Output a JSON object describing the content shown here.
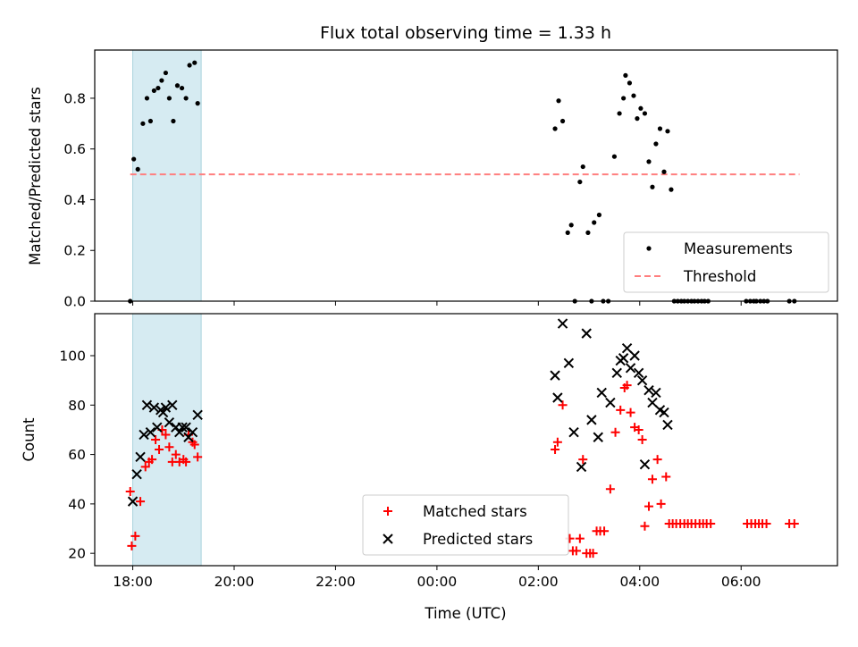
{
  "chart_data": [
    {
      "type": "scatter",
      "title": "Flux total observing time = 1.33 h",
      "xlabel": "",
      "ylabel": "Matched/Predicted stars",
      "xlim": [
        -6.75,
        7.9
      ],
      "ylim": [
        0,
        0.99
      ],
      "xticks": [
        -6,
        -4,
        -2,
        0,
        2,
        4,
        6
      ],
      "yticks": [
        0.0,
        0.2,
        0.4,
        0.6,
        0.8
      ],
      "ytick_labels": [
        "0.0",
        "0.2",
        "0.4",
        "0.6",
        "0.8"
      ],
      "highlight_span": [
        -6.0,
        -4.65
      ],
      "threshold": 0.5,
      "threshold_range": [
        -6.05,
        7.15
      ],
      "legend": {
        "position": "lower-right",
        "entries": [
          "Measurements",
          "Threshold"
        ]
      },
      "series": [
        {
          "name": "Measurements",
          "marker": "dot",
          "color": "#000000",
          "points": [
            [
              -6.05,
              0.0
            ],
            [
              -5.98,
              0.56
            ],
            [
              -5.9,
              0.52
            ],
            [
              -5.8,
              0.7
            ],
            [
              -5.72,
              0.8
            ],
            [
              -5.65,
              0.71
            ],
            [
              -5.58,
              0.83
            ],
            [
              -5.5,
              0.84
            ],
            [
              -5.43,
              0.87
            ],
            [
              -5.35,
              0.9
            ],
            [
              -5.28,
              0.8
            ],
            [
              -5.2,
              0.71
            ],
            [
              -5.12,
              0.85
            ],
            [
              -5.03,
              0.84
            ],
            [
              -4.95,
              0.8
            ],
            [
              -4.88,
              0.93
            ],
            [
              -4.78,
              0.94
            ],
            [
              -4.72,
              0.78
            ],
            [
              2.33,
              0.68
            ],
            [
              2.4,
              0.79
            ],
            [
              2.48,
              0.71
            ],
            [
              2.58,
              0.27
            ],
            [
              2.65,
              0.3
            ],
            [
              2.72,
              0.0
            ],
            [
              2.82,
              0.47
            ],
            [
              2.88,
              0.53
            ],
            [
              2.98,
              0.27
            ],
            [
              3.05,
              0.0
            ],
            [
              3.1,
              0.31
            ],
            [
              3.2,
              0.34
            ],
            [
              3.28,
              0.0
            ],
            [
              3.38,
              0.0
            ],
            [
              3.5,
              0.57
            ],
            [
              3.6,
              0.74
            ],
            [
              3.68,
              0.8
            ],
            [
              3.72,
              0.89
            ],
            [
              3.8,
              0.86
            ],
            [
              3.88,
              0.81
            ],
            [
              3.95,
              0.72
            ],
            [
              4.02,
              0.76
            ],
            [
              4.1,
              0.74
            ],
            [
              4.18,
              0.55
            ],
            [
              4.25,
              0.45
            ],
            [
              4.32,
              0.62
            ],
            [
              4.4,
              0.68
            ],
            [
              4.48,
              0.51
            ],
            [
              4.55,
              0.67
            ],
            [
              4.62,
              0.44
            ],
            [
              4.68,
              0.0
            ],
            [
              4.75,
              0.0
            ],
            [
              4.82,
              0.0
            ],
            [
              4.88,
              0.0
            ],
            [
              4.95,
              0.0
            ],
            [
              5.02,
              0.0
            ],
            [
              5.08,
              0.0
            ],
            [
              5.15,
              0.0
            ],
            [
              5.22,
              0.0
            ],
            [
              5.28,
              0.0
            ],
            [
              5.35,
              0.0
            ],
            [
              6.1,
              0.0
            ],
            [
              6.18,
              0.0
            ],
            [
              6.25,
              0.0
            ],
            [
              6.3,
              0.0
            ],
            [
              6.38,
              0.0
            ],
            [
              6.45,
              0.0
            ],
            [
              6.52,
              0.0
            ],
            [
              6.95,
              0.0
            ],
            [
              7.05,
              0.0
            ]
          ]
        },
        {
          "name": "Threshold",
          "marker": "dashed-line",
          "color": "#ff7f7f"
        }
      ]
    },
    {
      "type": "scatter",
      "title": "",
      "xlabel": "Time (UTC)",
      "ylabel": "Count",
      "xlim": [
        -6.75,
        7.9
      ],
      "ylim": [
        15,
        117
      ],
      "xticks": [
        -6,
        -4,
        -2,
        0,
        2,
        4,
        6
      ],
      "xtick_labels": [
        "18:00",
        "20:00",
        "22:00",
        "00:00",
        "02:00",
        "04:00",
        "06:00"
      ],
      "yticks": [
        20,
        40,
        60,
        80,
        100
      ],
      "ytick_labels": [
        "20",
        "40",
        "60",
        "80",
        "100"
      ],
      "highlight_span": [
        -6.0,
        -4.65
      ],
      "legend": {
        "position": "lower-center",
        "entries": [
          "Matched stars",
          "Predicted stars"
        ]
      },
      "series": [
        {
          "name": "Matched stars",
          "marker": "plus",
          "color": "#ff0000",
          "points": [
            [
              -6.05,
              45
            ],
            [
              -6.02,
              23
            ],
            [
              -5.95,
              27
            ],
            [
              -5.85,
              41
            ],
            [
              -5.75,
              55
            ],
            [
              -5.68,
              57
            ],
            [
              -5.62,
              58
            ],
            [
              -5.55,
              66
            ],
            [
              -5.48,
              62
            ],
            [
              -5.42,
              70
            ],
            [
              -5.35,
              68
            ],
            [
              -5.28,
              63
            ],
            [
              -5.22,
              57
            ],
            [
              -5.15,
              60
            ],
            [
              -5.08,
              57
            ],
            [
              -5.0,
              58
            ],
            [
              -4.95,
              57
            ],
            [
              -4.9,
              68
            ],
            [
              -4.82,
              65
            ],
            [
              -4.78,
              64
            ],
            [
              -4.72,
              59
            ],
            [
              2.33,
              62
            ],
            [
              2.38,
              65
            ],
            [
              2.48,
              80
            ],
            [
              2.62,
              26
            ],
            [
              2.68,
              21
            ],
            [
              2.75,
              21
            ],
            [
              2.82,
              26
            ],
            [
              2.88,
              58
            ],
            [
              2.95,
              20
            ],
            [
              3.02,
              20
            ],
            [
              3.08,
              20
            ],
            [
              3.15,
              29
            ],
            [
              3.22,
              29
            ],
            [
              3.3,
              29
            ],
            [
              3.42,
              46
            ],
            [
              3.52,
              69
            ],
            [
              3.62,
              78
            ],
            [
              3.7,
              87
            ],
            [
              3.75,
              88
            ],
            [
              3.82,
              77
            ],
            [
              3.9,
              71
            ],
            [
              3.98,
              70
            ],
            [
              4.05,
              66
            ],
            [
              4.1,
              31
            ],
            [
              4.18,
              39
            ],
            [
              4.25,
              50
            ],
            [
              4.35,
              58
            ],
            [
              4.42,
              40
            ],
            [
              4.52,
              51
            ],
            [
              4.58,
              32
            ],
            [
              4.65,
              32
            ],
            [
              4.72,
              32
            ],
            [
              4.8,
              32
            ],
            [
              4.88,
              32
            ],
            [
              4.95,
              32
            ],
            [
              5.02,
              32
            ],
            [
              5.1,
              32
            ],
            [
              5.18,
              32
            ],
            [
              5.25,
              32
            ],
            [
              5.32,
              32
            ],
            [
              5.4,
              32
            ],
            [
              6.12,
              32
            ],
            [
              6.2,
              32
            ],
            [
              6.28,
              32
            ],
            [
              6.35,
              32
            ],
            [
              6.42,
              32
            ],
            [
              6.5,
              32
            ],
            [
              6.95,
              32
            ],
            [
              7.05,
              32
            ]
          ]
        },
        {
          "name": "Predicted stars",
          "marker": "x",
          "color": "#000000",
          "points": [
            [
              -6.0,
              41
            ],
            [
              -5.92,
              52
            ],
            [
              -5.85,
              59
            ],
            [
              -5.78,
              68
            ],
            [
              -5.72,
              80
            ],
            [
              -5.65,
              69
            ],
            [
              -5.58,
              79
            ],
            [
              -5.52,
              71
            ],
            [
              -5.45,
              78
            ],
            [
              -5.4,
              77
            ],
            [
              -5.35,
              79
            ],
            [
              -5.28,
              73
            ],
            [
              -5.22,
              80
            ],
            [
              -5.15,
              71
            ],
            [
              -5.08,
              69
            ],
            [
              -5.02,
              71
            ],
            [
              -4.95,
              71
            ],
            [
              -4.9,
              67
            ],
            [
              -4.82,
              69
            ],
            [
              -4.72,
              76
            ],
            [
              2.33,
              92
            ],
            [
              2.38,
              83
            ],
            [
              2.48,
              113
            ],
            [
              2.6,
              97
            ],
            [
              2.7,
              69
            ],
            [
              2.85,
              55
            ],
            [
              2.95,
              109
            ],
            [
              3.05,
              74
            ],
            [
              3.18,
              67
            ],
            [
              3.25,
              85
            ],
            [
              3.42,
              81
            ],
            [
              3.55,
              93
            ],
            [
              3.62,
              98
            ],
            [
              3.68,
              99
            ],
            [
              3.75,
              103
            ],
            [
              3.82,
              95
            ],
            [
              3.9,
              100
            ],
            [
              3.98,
              93
            ],
            [
              4.05,
              90
            ],
            [
              4.1,
              56
            ],
            [
              4.18,
              86
            ],
            [
              4.25,
              81
            ],
            [
              4.32,
              85
            ],
            [
              4.4,
              78
            ],
            [
              4.48,
              77
            ],
            [
              4.55,
              72
            ]
          ]
        }
      ]
    }
  ]
}
